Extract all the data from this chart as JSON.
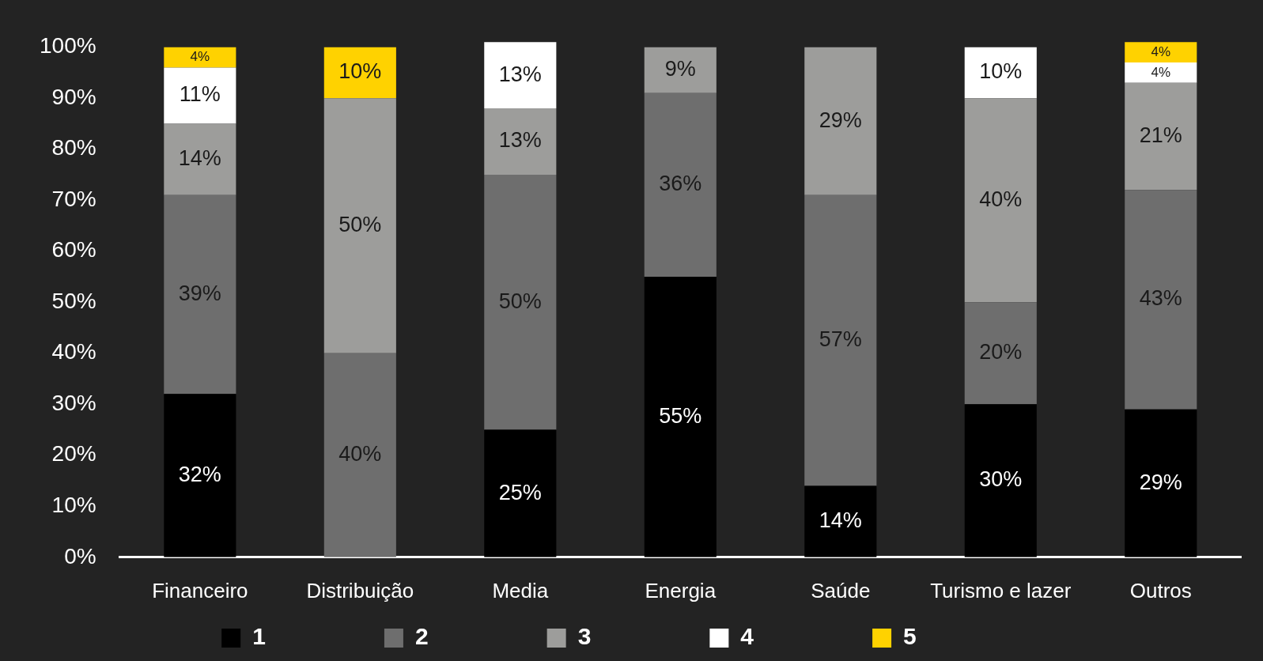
{
  "chart_data": {
    "type": "bar",
    "stacked": true,
    "categories": [
      "Financeiro",
      "Distribuição",
      "Media",
      "Energia",
      "Saúde",
      "Turismo e lazer",
      "Outros"
    ],
    "series": [
      {
        "name": "1",
        "color": "#000000",
        "values": [
          32,
          null,
          25,
          55,
          14,
          30,
          29
        ],
        "value_labels": [
          "32%",
          null,
          "25%",
          "55%",
          "14%",
          "30%",
          "29%"
        ]
      },
      {
        "name": "2",
        "color": "#6e6e6e",
        "values": [
          39,
          40,
          50,
          36,
          57,
          20,
          43
        ],
        "value_labels": [
          "39%",
          "40%",
          "50%",
          "36%",
          "57%",
          "20%",
          "43%"
        ]
      },
      {
        "name": "3",
        "color": "#9d9d9b",
        "values": [
          14,
          50,
          13,
          9,
          29,
          40,
          21
        ],
        "value_labels": [
          "14%",
          "50%",
          "13%",
          "9%",
          "29%",
          "40%",
          "21%"
        ]
      },
      {
        "name": "4",
        "color": "#ffffff",
        "values": [
          11,
          null,
          13,
          null,
          null,
          10,
          4
        ],
        "value_labels": [
          "11%",
          null,
          "13%",
          null,
          null,
          "10%",
          "4%"
        ]
      },
      {
        "name": "5",
        "color": "#ffd200",
        "values": [
          4,
          10,
          null,
          null,
          null,
          null,
          4
        ],
        "value_labels": [
          "4%",
          "10%",
          null,
          null,
          null,
          null,
          "4%"
        ]
      }
    ],
    "ylim": [
      0,
      102
    ],
    "yticks": [
      {
        "value": 0,
        "label": "0%"
      },
      {
        "value": 10,
        "label": "10%"
      },
      {
        "value": 20,
        "label": "20%"
      },
      {
        "value": 30,
        "label": "30%"
      },
      {
        "value": 40,
        "label": "40%"
      },
      {
        "value": 50,
        "label": "50%"
      },
      {
        "value": 60,
        "label": "60%"
      },
      {
        "value": 70,
        "label": "70%"
      },
      {
        "value": 80,
        "label": "80%"
      },
      {
        "value": 90,
        "label": "90%"
      },
      {
        "value": 100,
        "label": "100%"
      }
    ],
    "grid": false,
    "legend": "bottom"
  }
}
